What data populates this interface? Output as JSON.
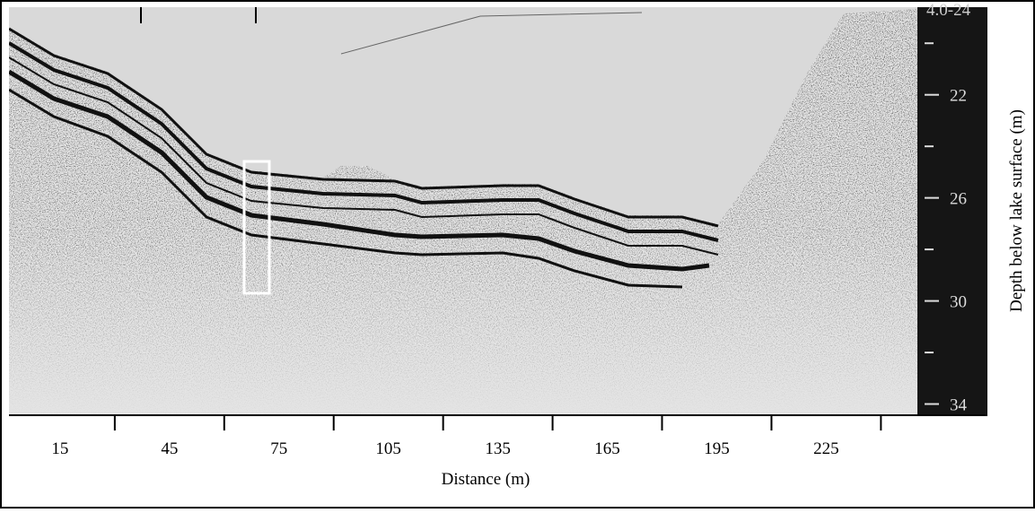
{
  "figure": {
    "scale_header": "4.0-24",
    "x_axis": {
      "label": "Distance (m)",
      "xlim": [
        1,
        250
      ],
      "tick_labels": [
        15,
        45,
        75,
        105,
        135,
        165,
        195,
        225
      ],
      "tick_marks": [
        30,
        60,
        90,
        120,
        150,
        180,
        210,
        240
      ]
    },
    "y_axis": {
      "label": "Depth below lake surface (m)",
      "ylim": [
        18.6,
        34.4
      ],
      "yticks": [
        22,
        26,
        30,
        34
      ],
      "minor_ticks": [
        20,
        24,
        28,
        32
      ]
    }
  }
}
